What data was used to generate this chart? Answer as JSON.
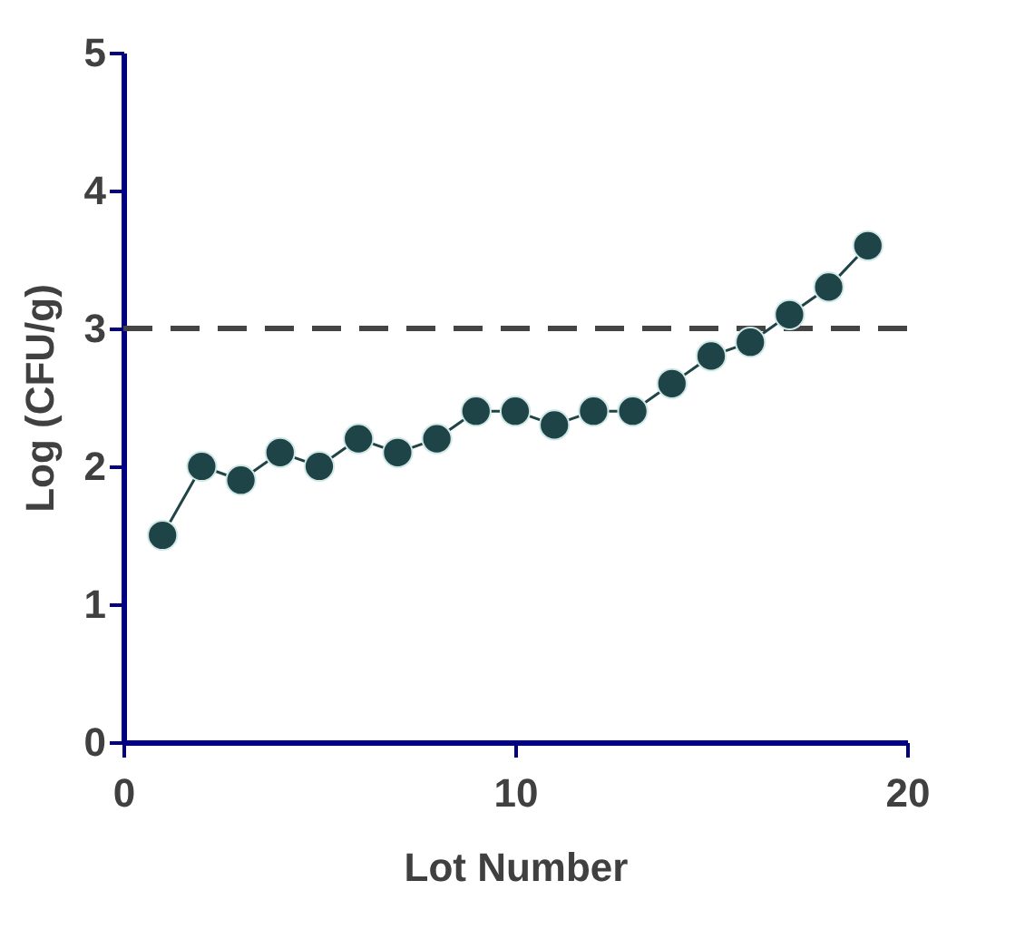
{
  "chart_data": {
    "type": "line",
    "xlabel": "Lot Number",
    "ylabel": "Log (CFU/g)",
    "x": [
      1,
      2,
      3,
      4,
      5,
      6,
      7,
      8,
      9,
      10,
      11,
      12,
      13,
      14,
      15,
      16,
      17,
      18,
      19
    ],
    "series": [
      {
        "color": "#1f4447",
        "values": [
          1.5,
          2.0,
          1.9,
          2.1,
          2.0,
          2.2,
          2.1,
          2.2,
          2.4,
          2.4,
          2.3,
          2.4,
          2.4,
          2.6,
          2.8,
          2.9,
          3.1,
          3.3,
          3.6
        ]
      }
    ],
    "xlim": [
      0,
      20
    ],
    "xticks": [
      0,
      10,
      20
    ],
    "ylim": [
      0,
      5
    ],
    "yticks": [
      0,
      1,
      2,
      3,
      4,
      5
    ],
    "ref_lines": [
      {
        "axis": "y",
        "value": 3,
        "color": "#444444",
        "line_style": "dashed"
      }
    ],
    "grid": false,
    "marker": "circle",
    "line_style": "solid"
  }
}
